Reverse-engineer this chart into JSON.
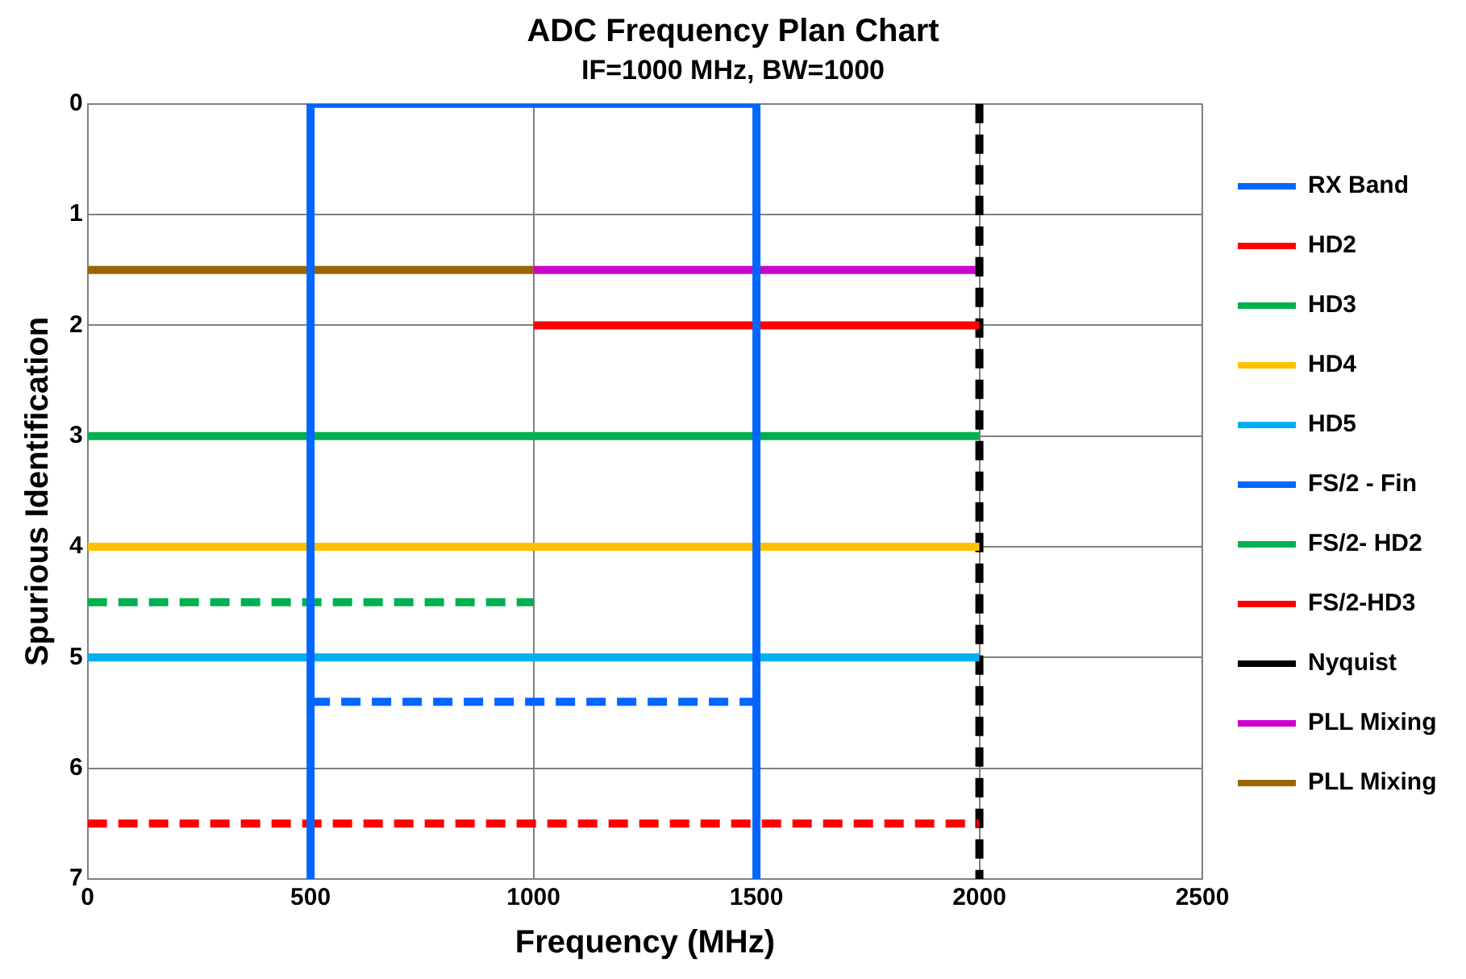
{
  "chart_data": {
    "type": "line",
    "title": "ADC Frequency Plan Chart",
    "subtitle": "IF=1000 MHz, BW=1000",
    "xlabel": "Frequency (MHz)",
    "ylabel": "Spurious Identification",
    "xlim": [
      0,
      2500
    ],
    "xticks": [
      0,
      500,
      1000,
      1500,
      2000,
      2500
    ],
    "ylim": [
      7,
      0
    ],
    "yticks": [
      0,
      1,
      2,
      3,
      4,
      5,
      6,
      7
    ],
    "grid": true,
    "legend": "right",
    "marker": "none",
    "series": [
      {
        "name": "RX Band",
        "color": "#0066ff",
        "line_style": "solid",
        "x": [
          500,
          500,
          1500,
          1500
        ],
        "values": [
          7,
          0,
          0,
          7
        ]
      },
      {
        "name": "HD2",
        "color": "#ff0000",
        "line_style": "solid",
        "x": [
          1000,
          2000
        ],
        "values": [
          2,
          2
        ]
      },
      {
        "name": "HD3",
        "color": "#00b050",
        "line_style": "solid",
        "x": [
          0,
          2000
        ],
        "values": [
          3,
          3
        ]
      },
      {
        "name": "HD4",
        "color": "#ffc000",
        "line_style": "solid",
        "x": [
          0,
          2000
        ],
        "values": [
          4,
          4
        ]
      },
      {
        "name": "HD5",
        "color": "#00b0f0",
        "line_style": "solid",
        "x": [
          0,
          2000
        ],
        "values": [
          5,
          5
        ]
      },
      {
        "name": "FS/2 - Fin",
        "color": "#0066ff",
        "line_style": "dashed",
        "x": [
          500,
          1500
        ],
        "values": [
          5.4,
          5.4
        ]
      },
      {
        "name": "FS/2- HD2",
        "color": "#00b050",
        "line_style": "dashed",
        "x": [
          0,
          1000
        ],
        "values": [
          4.5,
          4.5
        ]
      },
      {
        "name": "FS/2-HD3",
        "color": "#ff0000",
        "line_style": "dashed",
        "x": [
          0,
          2000
        ],
        "values": [
          6.5,
          6.5
        ]
      },
      {
        "name": "Nyquist",
        "color": "#000000",
        "line_style": "dashed",
        "x": [
          2000,
          2000
        ],
        "values": [
          0,
          7
        ]
      },
      {
        "name": "PLL Mixing",
        "color": "#cc00cc",
        "line_style": "solid",
        "x": [
          1000,
          2000
        ],
        "values": [
          1.5,
          1.5
        ]
      },
      {
        "name": "PLL Mixing",
        "color": "#996600",
        "line_style": "solid",
        "x": [
          0,
          1000
        ],
        "values": [
          1.5,
          1.5
        ]
      }
    ]
  }
}
